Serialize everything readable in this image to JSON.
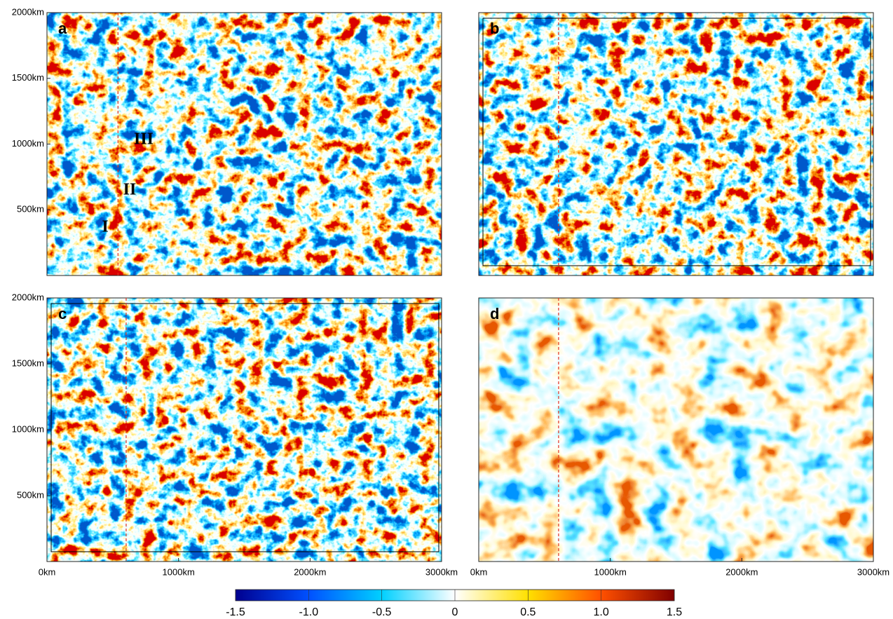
{
  "chart_data": [
    {
      "type": "field",
      "panel_label": "a",
      "xlim": [
        0,
        3000
      ],
      "ylim": [
        0,
        2000
      ],
      "yticks": [
        {
          "value": 500,
          "label": "500km"
        },
        {
          "value": 1000,
          "label": "1000km"
        },
        {
          "value": 1500,
          "label": "1500km"
        },
        {
          "value": 2000,
          "label": "2000km"
        }
      ],
      "reference_x": 540,
      "annotations": [
        "I",
        "II",
        "III"
      ]
    },
    {
      "type": "field",
      "panel_label": "b",
      "xlim": [
        0,
        3000
      ],
      "ylim": [
        0,
        2000
      ],
      "reference_x": 607
    },
    {
      "type": "field",
      "panel_label": "c",
      "xlim": [
        0,
        3000
      ],
      "ylim": [
        0,
        2000
      ],
      "yticks": [
        {
          "value": 500,
          "label": "500km"
        },
        {
          "value": 1000,
          "label": "1000km"
        },
        {
          "value": 1500,
          "label": "1500km"
        },
        {
          "value": 2000,
          "label": "2000km"
        }
      ],
      "xticks": [
        {
          "value": 0,
          "label": "0km"
        },
        {
          "value": 1000,
          "label": "1000km"
        },
        {
          "value": 2000,
          "label": "2000km"
        },
        {
          "value": 3000,
          "label": "3000km"
        }
      ],
      "reference_x": 602
    },
    {
      "type": "field",
      "panel_label": "d",
      "xlim": [
        0,
        3000
      ],
      "ylim": [
        0,
        2000
      ],
      "xticks": [
        {
          "value": 0,
          "label": "0km"
        },
        {
          "value": 1000,
          "label": "1000km"
        },
        {
          "value": 2000,
          "label": "2000km"
        },
        {
          "value": 3000,
          "label": "3000km"
        }
      ],
      "reference_x": 607
    }
  ],
  "colorbar": {
    "clim": [
      -1.5,
      1.5
    ],
    "ticks": [
      -1.5,
      {
        "value": -1,
        "label": "-1.0"
      },
      -0.5,
      0,
      0.5,
      {
        "value": 1,
        "label": "1.0"
      },
      1.5
    ],
    "colors": [
      "#00008f",
      "#0050ff",
      "#00d0ff",
      "#ffffff",
      "#ffe000",
      "#ff5000",
      "#800000"
    ]
  }
}
